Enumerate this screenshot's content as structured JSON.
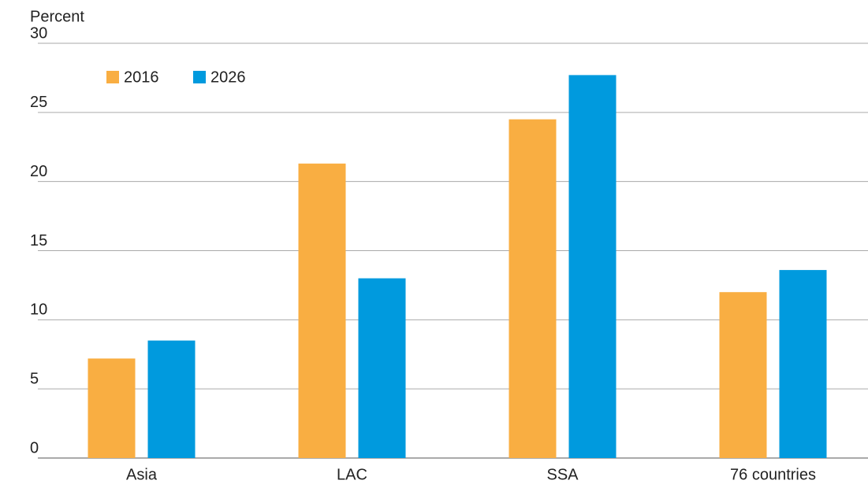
{
  "chart_data": {
    "type": "bar",
    "y_label": "Percent",
    "categories": [
      "Asia",
      "LAC",
      "SSA",
      "76 countries"
    ],
    "series": [
      {
        "name": "2016",
        "color": "#f9ae42",
        "values": [
          7.2,
          21.3,
          24.5,
          12.0
        ]
      },
      {
        "name": "2026",
        "color": "#009ade",
        "values": [
          8.5,
          13.0,
          27.7,
          13.6
        ]
      }
    ],
    "ylim": [
      0,
      30
    ],
    "yticks": [
      0,
      5,
      10,
      15,
      20,
      25,
      30
    ],
    "grid": true,
    "legend": "top-left"
  }
}
